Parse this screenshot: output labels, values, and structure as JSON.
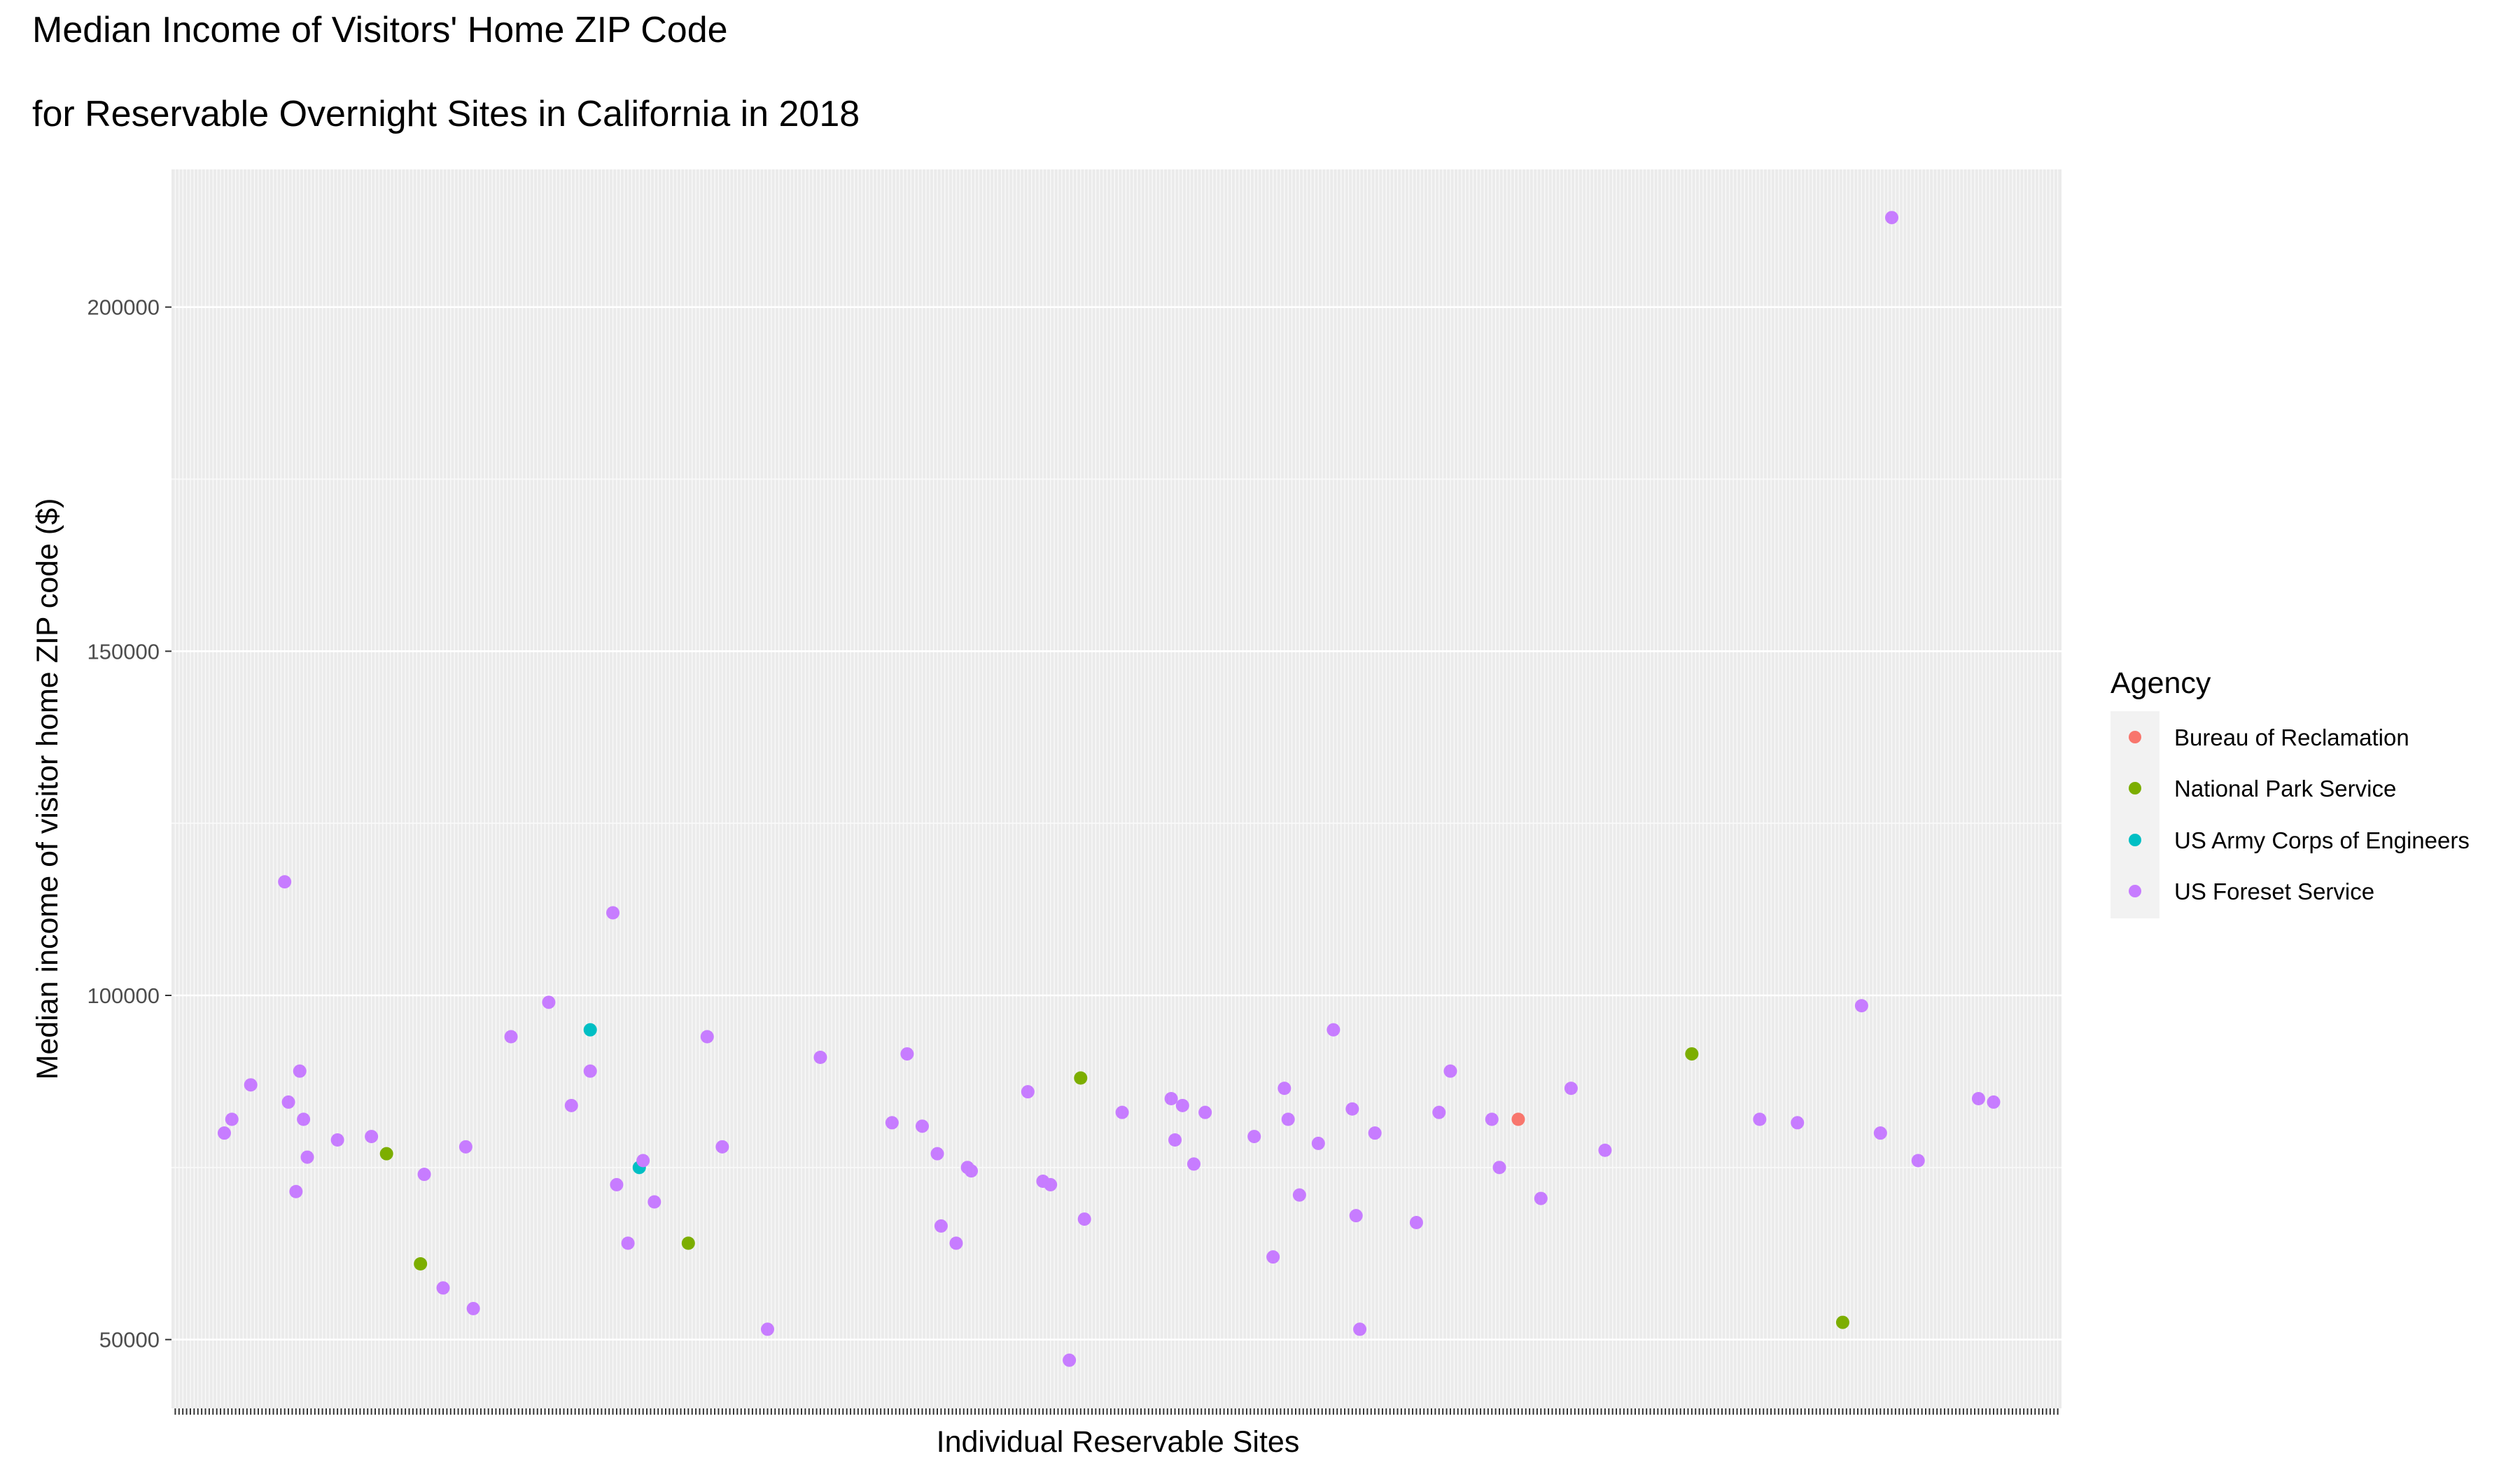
{
  "chart_data": {
    "type": "scatter",
    "title": "Median Income of Visitors' Home ZIP Code",
    "subtitle": "for Reservable Overnight Sites in California in 2018",
    "xlabel": "Individual Reservable Sites",
    "ylabel": "Median income of visitor home ZIP code ($)",
    "x_site_count": 500,
    "ylim": [
      40000,
      220000
    ],
    "yticks": [
      50000,
      100000,
      150000,
      200000
    ],
    "ytick_labels": [
      "50000",
      "100000",
      "150000",
      "200000"
    ],
    "grid": true,
    "legend": {
      "title": "Agency",
      "placement": "right",
      "entries": [
        {
          "name": "Bureau of Reclamation",
          "color": "#f8766d"
        },
        {
          "name": "National Park Service",
          "color": "#7cae00"
        },
        {
          "name": "US Army Corps of Engineers",
          "color": "#00bfc4"
        },
        {
          "name": "US Foreset Service",
          "color": "#c77cff"
        }
      ]
    },
    "series": [
      {
        "name": "Bureau of Reclamation",
        "color": "#f8766d",
        "points": [
          [
            356,
            82000
          ]
        ]
      },
      {
        "name": "National Park Service",
        "color": "#7cae00",
        "points": [
          [
            56,
            77000
          ],
          [
            65,
            61000
          ],
          [
            136,
            64000
          ],
          [
            240,
            88000
          ],
          [
            402,
            91500
          ],
          [
            442,
            52500
          ]
        ]
      },
      {
        "name": "US Army Corps of Engineers",
        "color": "#00bfc4",
        "points": [
          [
            110,
            95000
          ],
          [
            123,
            75000
          ]
        ]
      },
      {
        "name": "US Foreset Service",
        "color": "#c77cff",
        "points": [
          [
            13,
            80000
          ],
          [
            15,
            82000
          ],
          [
            20,
            87000
          ],
          [
            29,
            116500
          ],
          [
            30,
            84500
          ],
          [
            32,
            71500
          ],
          [
            33,
            89000
          ],
          [
            34,
            82000
          ],
          [
            35,
            76500
          ],
          [
            43,
            79000
          ],
          [
            52,
            79500
          ],
          [
            66,
            74000
          ],
          [
            71,
            57500
          ],
          [
            77,
            78000
          ],
          [
            79,
            54500
          ],
          [
            89,
            94000
          ],
          [
            99,
            99000
          ],
          [
            105,
            84000
          ],
          [
            110,
            89000
          ],
          [
            116,
            112000
          ],
          [
            117,
            72500
          ],
          [
            120,
            64000
          ],
          [
            124,
            76000
          ],
          [
            127,
            70000
          ],
          [
            141,
            94000
          ],
          [
            145,
            78000
          ],
          [
            157,
            51500
          ],
          [
            171,
            91000
          ],
          [
            190,
            81500
          ],
          [
            194,
            91500
          ],
          [
            198,
            81000
          ],
          [
            202,
            77000
          ],
          [
            203,
            66500
          ],
          [
            207,
            64000
          ],
          [
            210,
            75000
          ],
          [
            211,
            74500
          ],
          [
            226,
            86000
          ],
          [
            230,
            73000
          ],
          [
            232,
            72500
          ],
          [
            237,
            47000
          ],
          [
            241,
            67500
          ],
          [
            251,
            83000
          ],
          [
            264,
            85000
          ],
          [
            265,
            79000
          ],
          [
            267,
            84000
          ],
          [
            270,
            75500
          ],
          [
            273,
            83000
          ],
          [
            286,
            79500
          ],
          [
            291,
            62000
          ],
          [
            294,
            86500
          ],
          [
            295,
            82000
          ],
          [
            298,
            71000
          ],
          [
            303,
            78500
          ],
          [
            307,
            95000
          ],
          [
            312,
            83500
          ],
          [
            313,
            68000
          ],
          [
            314,
            51500
          ],
          [
            318,
            80000
          ],
          [
            329,
            67000
          ],
          [
            335,
            83000
          ],
          [
            338,
            89000
          ],
          [
            349,
            82000
          ],
          [
            351,
            75000
          ],
          [
            362,
            70500
          ],
          [
            370,
            86500
          ],
          [
            379,
            77500
          ],
          [
            420,
            82000
          ],
          [
            430,
            81500
          ],
          [
            447,
            98500
          ],
          [
            452,
            80000
          ],
          [
            455,
            213000
          ],
          [
            462,
            76000
          ],
          [
            478,
            85000
          ],
          [
            482,
            84500
          ]
        ]
      }
    ]
  }
}
